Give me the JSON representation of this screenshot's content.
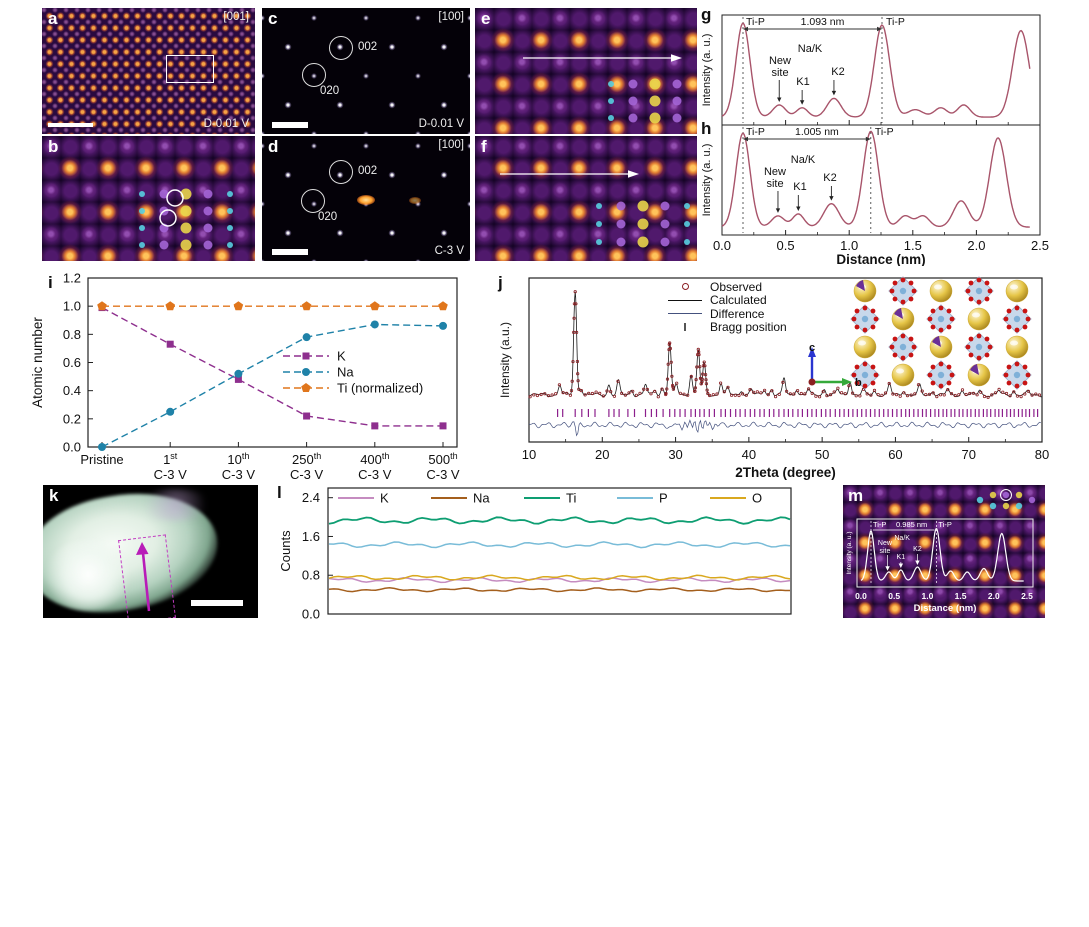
{
  "panels": {
    "a": {
      "letter": "a",
      "zone_axis": "[001]",
      "condition": "D-0.01 V"
    },
    "b": {
      "letter": "b"
    },
    "c": {
      "letter": "c",
      "zone_axis": "[100]",
      "spot_002": "002",
      "spot_020": "020",
      "condition": "D-0.01 V"
    },
    "d": {
      "letter": "d",
      "zone_axis": "[100]",
      "spot_002": "002",
      "spot_020": "020",
      "condition": "C-3 V"
    },
    "e": {
      "letter": "e"
    },
    "f": {
      "letter": "f"
    },
    "g": {
      "letter": "g"
    },
    "h": {
      "letter": "h"
    },
    "i": {
      "letter": "i"
    },
    "j": {
      "letter": "j",
      "legend": [
        "Observed",
        "Calculated",
        "Difference",
        "Bragg position"
      ],
      "axis_c": "c",
      "axis_b": "b"
    },
    "k": {
      "letter": "k"
    },
    "l": {
      "letter": "l"
    },
    "m": {
      "letter": "m"
    }
  },
  "chart_data": [
    {
      "id": "g",
      "type": "line",
      "ylabel": "Intensity (a. u.)",
      "xlim": [
        0,
        2.5
      ],
      "ti_p_peak_labels": [
        "Ti-P",
        "Ti-P"
      ],
      "distance_label": "1.093 nm",
      "ti_p_distance_nm": 1.093,
      "ti_p_positions": [
        0.165,
        1.258
      ],
      "baseline": 0.03,
      "peaks": [
        [
          0.165,
          1.0,
          0.055
        ],
        [
          0.45,
          0.13,
          0.05
        ],
        [
          0.63,
          0.1,
          0.045
        ],
        [
          0.88,
          0.2,
          0.055
        ],
        [
          1.258,
          0.98,
          0.06
        ],
        [
          1.52,
          0.08,
          0.06
        ],
        [
          1.72,
          0.1,
          0.05
        ],
        [
          1.9,
          0.13,
          0.05
        ],
        [
          2.35,
          0.92,
          0.065
        ]
      ],
      "annotations": [
        {
          "label": "Na/K",
          "x": 0.72,
          "arrow": false
        },
        {
          "label": "New site",
          "x": 0.45,
          "arrow": true
        },
        {
          "label": "K1",
          "x": 0.63,
          "arrow": true
        },
        {
          "label": "K2",
          "x": 0.88,
          "arrow": true
        }
      ]
    },
    {
      "id": "h",
      "type": "line",
      "ylabel": "Intensity (a. u.)",
      "xlabel": "Distance (nm)",
      "xlim": [
        0,
        2.5
      ],
      "xticks": [
        "0.0",
        "0.5",
        "1.0",
        "1.5",
        "2.0",
        "2.5"
      ],
      "ti_p_peak_labels": [
        "Ti-P",
        "Ti-P"
      ],
      "distance_label": "1.005 nm",
      "ti_p_distance_nm": 1.005,
      "ti_p_positions": [
        0.165,
        1.17
      ],
      "baseline": 0.03,
      "peaks": [
        [
          0.165,
          1.0,
          0.055
        ],
        [
          0.44,
          0.12,
          0.05
        ],
        [
          0.6,
          0.14,
          0.045
        ],
        [
          0.86,
          0.25,
          0.06
        ],
        [
          1.17,
          1.02,
          0.06
        ],
        [
          1.44,
          0.12,
          0.05
        ],
        [
          1.58,
          0.12,
          0.05
        ],
        [
          1.88,
          0.28,
          0.06
        ],
        [
          2.17,
          0.95,
          0.065
        ]
      ],
      "annotations": [
        {
          "label": "Na/K",
          "x": 0.66,
          "arrow": false
        },
        {
          "label": "New site",
          "x": 0.44,
          "arrow": true
        },
        {
          "label": "K1",
          "x": 0.6,
          "arrow": true
        },
        {
          "label": "K2",
          "x": 0.86,
          "arrow": true
        }
      ]
    },
    {
      "id": "i",
      "type": "scatter",
      "ylabel": "Atomic number",
      "ylim": [
        0,
        1.2
      ],
      "yticks": [
        "0.0",
        "0.2",
        "0.4",
        "0.6",
        "0.8",
        "1.0",
        "1.2"
      ],
      "categories": [
        {
          "t": "Pristine",
          "s": "",
          "b": ""
        },
        {
          "t": "1",
          "s": "st",
          "b": "C-3 V"
        },
        {
          "t": "10",
          "s": "th",
          "b": "C-3 V"
        },
        {
          "t": "250",
          "s": "th",
          "b": "C-3 V"
        },
        {
          "t": "400",
          "s": "th",
          "b": "C-3 V"
        },
        {
          "t": "500",
          "s": "th",
          "b": "C-3 V"
        }
      ],
      "series": [
        {
          "name": "K",
          "color": "#8e2f8e",
          "marker": "square",
          "values": [
            0.99,
            0.73,
            0.48,
            0.22,
            0.15,
            0.15
          ]
        },
        {
          "name": "Na",
          "color": "#1f82a8",
          "marker": "circle",
          "values": [
            0,
            0.25,
            0.52,
            0.78,
            0.87,
            0.86
          ]
        },
        {
          "name": "Ti (normalized)",
          "color": "#e0761c",
          "marker": "pentagon",
          "values": [
            1,
            1,
            1,
            1,
            1,
            1
          ]
        }
      ]
    },
    {
      "id": "j",
      "type": "xrd",
      "xlabel": "2Theta (degree)",
      "ylabel": "Intensity (a.u.)",
      "xlim": [
        10,
        80
      ],
      "xticks": [
        "10",
        "20",
        "30",
        "40",
        "50",
        "60",
        "70",
        "80"
      ],
      "peak_width": 0.2,
      "peaks": [
        [
          14.2,
          0.1
        ],
        [
          16.3,
          1.0
        ],
        [
          17.1,
          0.07
        ],
        [
          20.9,
          0.1
        ],
        [
          22.2,
          0.13
        ],
        [
          24.0,
          0.05
        ],
        [
          25.9,
          0.1
        ],
        [
          27.2,
          0.05
        ],
        [
          28.2,
          0.07
        ],
        [
          29.2,
          0.5
        ],
        [
          30.1,
          0.1
        ],
        [
          32.1,
          0.2
        ],
        [
          33.1,
          0.44
        ],
        [
          33.9,
          0.3
        ],
        [
          36.2,
          0.12
        ],
        [
          37.1,
          0.06
        ],
        [
          39.0,
          0.05
        ],
        [
          40.3,
          0.06
        ],
        [
          42.1,
          0.05
        ],
        [
          43.1,
          0.06
        ],
        [
          44.8,
          0.16
        ],
        [
          46.5,
          0.06
        ],
        [
          48.1,
          0.05
        ],
        [
          50.3,
          0.06
        ],
        [
          52.1,
          0.05
        ],
        [
          53.8,
          0.14
        ],
        [
          55.6,
          0.05
        ],
        [
          57.1,
          0.04
        ],
        [
          59.2,
          0.1
        ],
        [
          61.1,
          0.05
        ],
        [
          63.3,
          0.09
        ],
        [
          65.1,
          0.04
        ],
        [
          67.1,
          0.05
        ],
        [
          69.1,
          0.04
        ],
        [
          71.5,
          0.05
        ],
        [
          74.1,
          0.04
        ],
        [
          76.1,
          0.04
        ],
        [
          78.1,
          0.03
        ]
      ],
      "bragg_positions": [
        13.9,
        14.6,
        16.3,
        17.2,
        18.1,
        19.0,
        20.9,
        21.6,
        22.3,
        23.5,
        24.4,
        25.9,
        26.7,
        27.4,
        28.3,
        29.2,
        29.9,
        30.6,
        31.3,
        32.1,
        32.7,
        33.3,
        33.9,
        34.6,
        35.3,
        36.2,
        36.8,
        37.5,
        38.2,
        38.8,
        39.5,
        40.2,
        40.8,
        41.5,
        42.1,
        42.8,
        43.4,
        44.1,
        44.8,
        45.4,
        46.0,
        46.7,
        47.3,
        48.0,
        48.6,
        49.2,
        49.9,
        50.5,
        51.1,
        51.8,
        52.4,
        53.0,
        53.6,
        54.2,
        54.8,
        55.4,
        56.0,
        56.6,
        57.2,
        57.8,
        58.4,
        59.0,
        59.6,
        60.2,
        60.8,
        61.4,
        61.9,
        62.5,
        63.1,
        63.7,
        64.2,
        64.8,
        65.4,
        65.9,
        66.5,
        67.0,
        67.6,
        68.1,
        68.7,
        69.2,
        69.8,
        70.3,
        70.9,
        71.4,
        72.0,
        72.5,
        73.0,
        73.6,
        74.1,
        74.6,
        75.2,
        75.7,
        76.2,
        76.8,
        77.3,
        77.8,
        78.3,
        78.9,
        79.4
      ],
      "colors": {
        "observed": "#8b1f24",
        "calculated": "#1a1a1a",
        "difference": "#44517e",
        "bragg": "#8c1f8c"
      }
    },
    {
      "id": "l",
      "type": "line",
      "ylabel": "Counts",
      "ylim": [
        0,
        2.6
      ],
      "yticks": [
        "0.0",
        "0.8",
        "1.6",
        "2.4"
      ],
      "series": [
        {
          "name": "K",
          "color": "#c58cc0",
          "mean": 0.7,
          "amp": 0.05
        },
        {
          "name": "Na",
          "color": "#a45f1d",
          "mean": 0.5,
          "amp": 0.04
        },
        {
          "name": "Ti",
          "color": "#0e9e72",
          "mean": 1.93,
          "amp": 0.07
        },
        {
          "name": "P",
          "color": "#79bcd8",
          "mean": 1.43,
          "amp": 0.06
        },
        {
          "name": "O",
          "color": "#d9a81f",
          "mean": 0.75,
          "amp": 0.05
        }
      ]
    },
    {
      "id": "m",
      "type": "line",
      "ylabel": "Intensity (a. u.)",
      "xlabel": "Distance (nm)",
      "xlim": [
        0,
        2.5
      ],
      "xticks": [
        "0.0",
        "0.5",
        "1.0",
        "1.5",
        "2.0",
        "2.5"
      ],
      "ti_p_peak_labels": [
        "Ti-P",
        "Ti-P"
      ],
      "distance_label": "0.985 nm",
      "ti_p_distance_nm": 0.985,
      "ti_p_positions": [
        0.15,
        1.135
      ],
      "baseline": 0.04,
      "peaks": [
        [
          0.15,
          1.0,
          0.05
        ],
        [
          0.42,
          0.18,
          0.05
        ],
        [
          0.6,
          0.22,
          0.045
        ],
        [
          0.85,
          0.28,
          0.055
        ],
        [
          1.135,
          1.05,
          0.055
        ],
        [
          1.35,
          0.2,
          0.05
        ],
        [
          1.6,
          0.18,
          0.05
        ],
        [
          1.85,
          0.25,
          0.055
        ],
        [
          2.12,
          0.95,
          0.06
        ]
      ],
      "annotations": [
        {
          "label": "Na/K",
          "x": 0.62,
          "arrow": false
        },
        {
          "label": "New site",
          "x": 0.4,
          "arrow": true
        },
        {
          "label": "K1",
          "x": 0.6,
          "arrow": true
        },
        {
          "label": "K2",
          "x": 0.85,
          "arrow": true
        }
      ]
    }
  ]
}
